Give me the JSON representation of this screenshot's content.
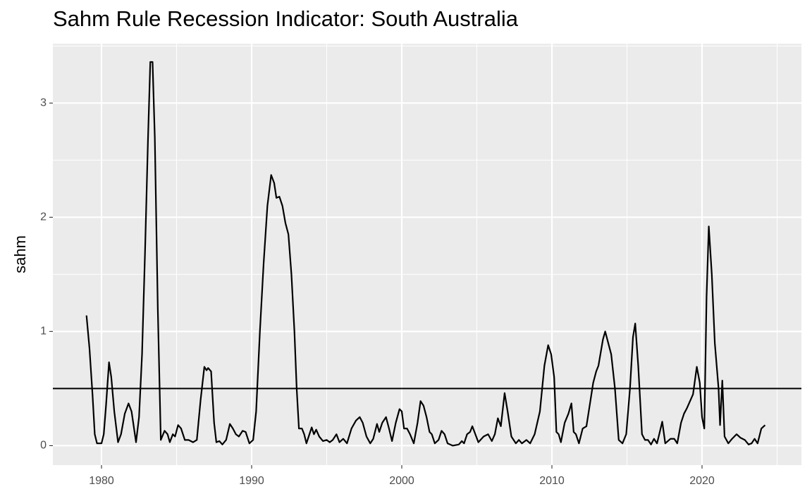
{
  "chart_data": {
    "type": "line",
    "title": "Sahm Rule Recession Indicator: South Australia",
    "y_label": "sahm",
    "xlim": [
      1976.76,
      2026.62
    ],
    "xticks": [
      1980,
      1990,
      2000,
      2010,
      2020
    ],
    "ylim": [
      -0.17,
      3.52
    ],
    "yticks": [
      0,
      1,
      2,
      3
    ],
    "grid": true,
    "hline": 0.5,
    "series": [
      {
        "color": "#000000",
        "x": [
          1979.0,
          1979.2,
          1979.4,
          1979.55,
          1979.7,
          1980.0,
          1980.15,
          1980.3,
          1980.5,
          1980.65,
          1980.85,
          1981.1,
          1981.3,
          1981.55,
          1981.8,
          1982.0,
          1982.3,
          1982.5,
          1982.7,
          1982.9,
          1983.1,
          1983.25,
          1983.4,
          1983.55,
          1983.75,
          1983.95,
          1984.2,
          1984.4,
          1984.55,
          1984.75,
          1984.9,
          1985.1,
          1985.3,
          1985.55,
          1985.8,
          1986.1,
          1986.35,
          1986.6,
          1986.85,
          1987.0,
          1987.1,
          1987.3,
          1987.5,
          1987.65,
          1987.85,
          1988.05,
          1988.3,
          1988.55,
          1988.75,
          1988.95,
          1989.15,
          1989.4,
          1989.6,
          1989.85,
          1990.1,
          1990.3,
          1990.55,
          1990.8,
          1991.05,
          1991.3,
          1991.5,
          1991.65,
          1991.85,
          1992.05,
          1992.25,
          1992.45,
          1992.65,
          1992.85,
          1993.0,
          1993.15,
          1993.35,
          1993.5,
          1993.65,
          1993.85,
          1994.0,
          1994.15,
          1994.3,
          1994.5,
          1994.75,
          1995.0,
          1995.2,
          1995.4,
          1995.65,
          1995.85,
          1996.1,
          1996.35,
          1996.65,
          1996.95,
          1997.2,
          1997.4,
          1997.65,
          1997.9,
          1998.1,
          1998.35,
          1998.5,
          1998.7,
          1998.95,
          1999.15,
          1999.35,
          1999.6,
          1999.85,
          2000.0,
          2000.15,
          2000.35,
          2000.55,
          2000.8,
          2001.05,
          2001.25,
          2001.45,
          2001.65,
          2001.85,
          2002.0,
          2002.2,
          2002.45,
          2002.65,
          2002.85,
          2003.05,
          2003.4,
          2003.8,
          2004.0,
          2004.15,
          2004.35,
          2004.55,
          2004.7,
          2004.9,
          2005.1,
          2005.45,
          2005.75,
          2006.0,
          2006.2,
          2006.4,
          2006.6,
          2006.85,
          2007.05,
          2007.3,
          2007.6,
          2007.8,
          2008.0,
          2008.3,
          2008.55,
          2008.85,
          2009.2,
          2009.5,
          2009.75,
          2009.95,
          2010.15,
          2010.3,
          2010.45,
          2010.6,
          2010.85,
          2011.1,
          2011.3,
          2011.45,
          2011.6,
          2011.8,
          2012.05,
          2012.3,
          2012.55,
          2012.75,
          2012.95,
          2013.1,
          2013.4,
          2013.55,
          2013.75,
          2013.95,
          2014.2,
          2014.45,
          2014.7,
          2014.95,
          2015.2,
          2015.4,
          2015.55,
          2015.75,
          2016.0,
          2016.2,
          2016.4,
          2016.6,
          2016.8,
          2017.0,
          2017.15,
          2017.35,
          2017.55,
          2017.9,
          2018.15,
          2018.35,
          2018.6,
          2018.8,
          2019.0,
          2019.4,
          2019.65,
          2019.85,
          2020.0,
          2020.15,
          2020.3,
          2020.45,
          2020.65,
          2020.85,
          2021.1,
          2021.2,
          2021.35,
          2021.5,
          2021.75,
          2022.0,
          2022.3,
          2022.55,
          2022.85,
          2023.1,
          2023.3,
          2023.5,
          2023.7,
          2023.95,
          2024.2
        ],
        "values": [
          1.14,
          0.85,
          0.45,
          0.1,
          0.02,
          0.02,
          0.1,
          0.35,
          0.73,
          0.6,
          0.3,
          0.03,
          0.1,
          0.28,
          0.37,
          0.3,
          0.03,
          0.25,
          0.8,
          1.7,
          2.7,
          3.36,
          3.36,
          2.7,
          1.2,
          0.05,
          0.13,
          0.1,
          0.03,
          0.1,
          0.08,
          0.18,
          0.15,
          0.05,
          0.05,
          0.03,
          0.05,
          0.4,
          0.69,
          0.66,
          0.68,
          0.65,
          0.2,
          0.03,
          0.04,
          0.01,
          0.05,
          0.19,
          0.15,
          0.1,
          0.08,
          0.13,
          0.12,
          0.02,
          0.05,
          0.3,
          1.0,
          1.6,
          2.1,
          2.37,
          2.3,
          2.17,
          2.18,
          2.1,
          1.95,
          1.85,
          1.5,
          1.0,
          0.5,
          0.15,
          0.15,
          0.1,
          0.02,
          0.1,
          0.16,
          0.1,
          0.14,
          0.08,
          0.04,
          0.05,
          0.03,
          0.05,
          0.1,
          0.03,
          0.06,
          0.02,
          0.15,
          0.22,
          0.25,
          0.2,
          0.08,
          0.02,
          0.06,
          0.19,
          0.12,
          0.2,
          0.25,
          0.15,
          0.04,
          0.2,
          0.32,
          0.3,
          0.15,
          0.15,
          0.1,
          0.02,
          0.2,
          0.39,
          0.35,
          0.25,
          0.12,
          0.1,
          0.02,
          0.05,
          0.13,
          0.1,
          0.02,
          0.0,
          0.01,
          0.04,
          0.02,
          0.1,
          0.12,
          0.17,
          0.1,
          0.03,
          0.08,
          0.1,
          0.04,
          0.1,
          0.24,
          0.17,
          0.46,
          0.3,
          0.08,
          0.02,
          0.05,
          0.02,
          0.05,
          0.02,
          0.1,
          0.3,
          0.7,
          0.88,
          0.8,
          0.6,
          0.12,
          0.1,
          0.03,
          0.2,
          0.28,
          0.37,
          0.12,
          0.1,
          0.02,
          0.15,
          0.17,
          0.38,
          0.55,
          0.65,
          0.7,
          0.93,
          1.0,
          0.9,
          0.8,
          0.5,
          0.05,
          0.02,
          0.1,
          0.5,
          0.95,
          1.07,
          0.7,
          0.1,
          0.05,
          0.05,
          0.01,
          0.06,
          0.02,
          0.1,
          0.21,
          0.02,
          0.06,
          0.06,
          0.02,
          0.2,
          0.28,
          0.33,
          0.45,
          0.69,
          0.55,
          0.25,
          0.15,
          1.3,
          1.92,
          1.5,
          0.9,
          0.5,
          0.18,
          0.57,
          0.08,
          0.02,
          0.06,
          0.1,
          0.07,
          0.05,
          0.01,
          0.02,
          0.06,
          0.02,
          0.15,
          0.18
        ]
      }
    ]
  }
}
